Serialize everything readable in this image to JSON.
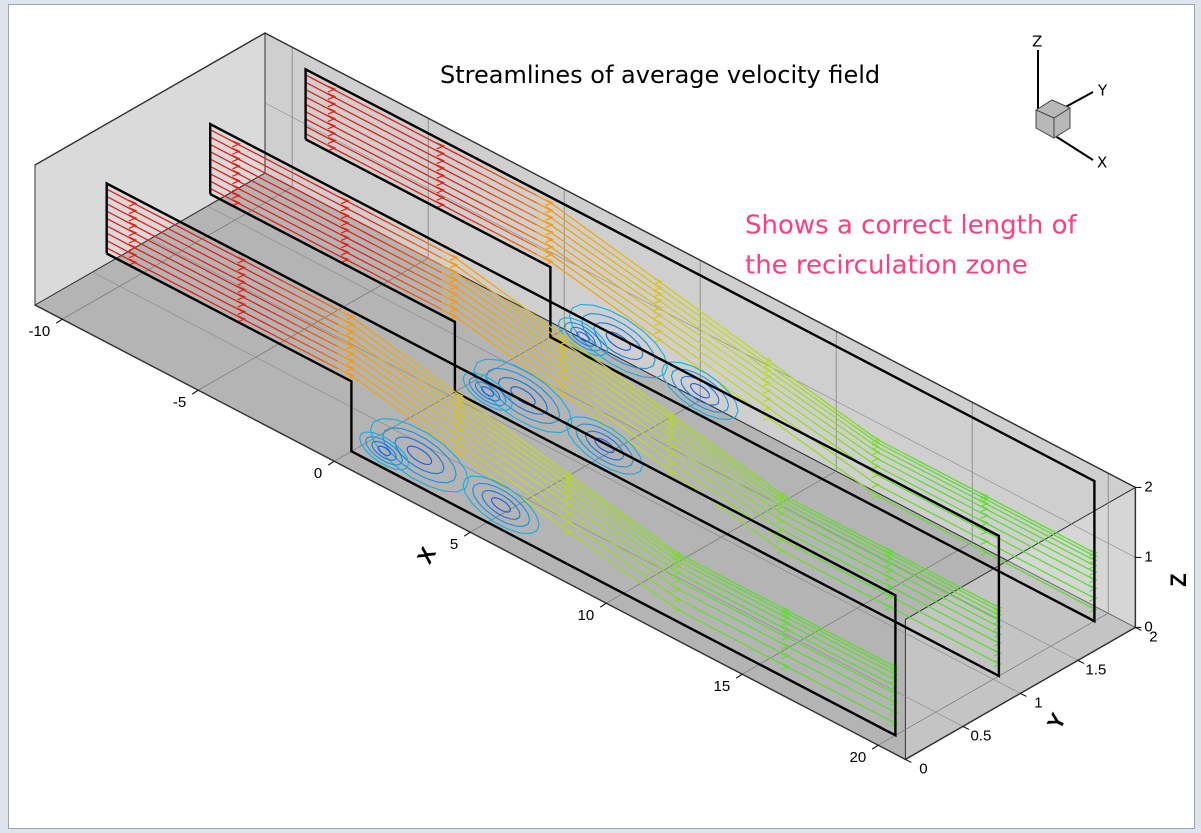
{
  "title": "Streamlines of average velocity field",
  "annotation": [
    "Shows a correct length of",
    "the recirculation zone"
  ],
  "axes": {
    "x": {
      "label": "X",
      "ticks": [
        "-10",
        "-5",
        "0",
        "5",
        "10",
        "15",
        "20"
      ]
    },
    "y": {
      "label": "Y",
      "ticks": [
        "0",
        "0.5",
        "1",
        "1.5",
        "2"
      ]
    },
    "z": {
      "label": "Z",
      "ticks": [
        "0",
        "1",
        "2"
      ]
    }
  },
  "orientation": {
    "z": "Z",
    "y": "Y",
    "x": "X"
  }
}
